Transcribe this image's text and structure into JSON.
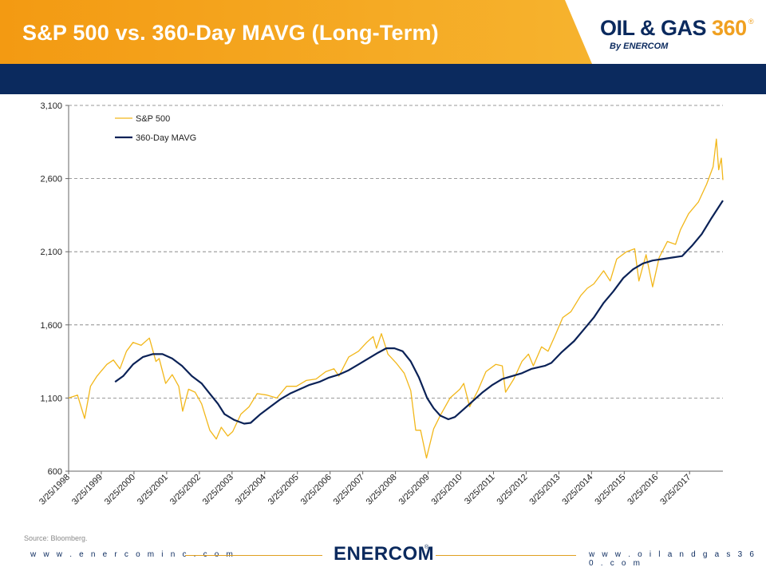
{
  "header": {
    "title": "S&P 500 vs. 360-Day MAVG (Long-Term)",
    "logo_text_left": "OIL & GAS ",
    "logo_text_num": "360",
    "logo_reg": "®",
    "logo_sub": "By ENERCOM"
  },
  "colors": {
    "banner_orange": "#f0a020",
    "banner_navy": "#0b2a5e",
    "sp500_line": "#f2b71a",
    "mavg_line": "#0b2257"
  },
  "chart_data": {
    "type": "line",
    "ylim": [
      600,
      3100
    ],
    "y_ticks": [
      "3,100",
      "2,600",
      "2,100",
      "1,600",
      "1,100",
      "600"
    ],
    "y_tick_values": [
      3100,
      2600,
      2100,
      1600,
      1100,
      600
    ],
    "x_ticks": [
      "3/25/1998",
      "3/25/1999",
      "3/25/2000",
      "3/25/2001",
      "3/25/2002",
      "3/25/2003",
      "3/25/2004",
      "3/25/2005",
      "3/25/2006",
      "3/25/2007",
      "3/25/2008",
      "3/25/2009",
      "3/25/2010",
      "3/25/2011",
      "3/25/2012",
      "3/25/2013",
      "3/25/2014",
      "3/25/2015",
      "3/25/2016",
      "3/25/2017"
    ],
    "x_tick_values": [
      1998.23,
      1999.23,
      2000.23,
      2001.23,
      2002.23,
      2003.23,
      2004.23,
      2005.23,
      2006.23,
      2007.23,
      2008.23,
      2009.23,
      2010.23,
      2011.23,
      2012.23,
      2013.23,
      2014.23,
      2015.23,
      2016.23,
      2017.23
    ],
    "xlim": [
      1998.23,
      2018.25
    ],
    "grid": "horizontal dashed",
    "legend_position": "top-left",
    "series": [
      {
        "name": "S&P 500",
        "points": [
          [
            1998.23,
            1100
          ],
          [
            1998.5,
            1120
          ],
          [
            1998.72,
            960
          ],
          [
            1998.9,
            1180
          ],
          [
            1999.1,
            1250
          ],
          [
            1999.4,
            1330
          ],
          [
            1999.6,
            1360
          ],
          [
            1999.8,
            1300
          ],
          [
            2000.0,
            1420
          ],
          [
            2000.2,
            1480
          ],
          [
            2000.45,
            1460
          ],
          [
            2000.7,
            1510
          ],
          [
            2000.9,
            1350
          ],
          [
            2001.0,
            1370
          ],
          [
            2001.2,
            1200
          ],
          [
            2001.4,
            1260
          ],
          [
            2001.6,
            1180
          ],
          [
            2001.72,
            1010
          ],
          [
            2001.9,
            1160
          ],
          [
            2002.1,
            1140
          ],
          [
            2002.3,
            1060
          ],
          [
            2002.55,
            880
          ],
          [
            2002.75,
            820
          ],
          [
            2002.9,
            900
          ],
          [
            2003.1,
            840
          ],
          [
            2003.25,
            870
          ],
          [
            2003.5,
            990
          ],
          [
            2003.75,
            1040
          ],
          [
            2004.0,
            1130
          ],
          [
            2004.3,
            1120
          ],
          [
            2004.6,
            1100
          ],
          [
            2004.9,
            1180
          ],
          [
            2005.2,
            1180
          ],
          [
            2005.5,
            1220
          ],
          [
            2005.8,
            1230
          ],
          [
            2006.1,
            1280
          ],
          [
            2006.35,
            1300
          ],
          [
            2006.5,
            1250
          ],
          [
            2006.8,
            1380
          ],
          [
            2007.1,
            1420
          ],
          [
            2007.35,
            1480
          ],
          [
            2007.55,
            1520
          ],
          [
            2007.65,
            1440
          ],
          [
            2007.8,
            1540
          ],
          [
            2008.0,
            1400
          ],
          [
            2008.25,
            1340
          ],
          [
            2008.5,
            1270
          ],
          [
            2008.7,
            1150
          ],
          [
            2008.85,
            880
          ],
          [
            2009.0,
            880
          ],
          [
            2009.18,
            690
          ],
          [
            2009.4,
            890
          ],
          [
            2009.6,
            980
          ],
          [
            2009.9,
            1100
          ],
          [
            2010.2,
            1160
          ],
          [
            2010.32,
            1200
          ],
          [
            2010.5,
            1040
          ],
          [
            2010.75,
            1150
          ],
          [
            2011.0,
            1280
          ],
          [
            2011.3,
            1330
          ],
          [
            2011.5,
            1320
          ],
          [
            2011.6,
            1140
          ],
          [
            2011.85,
            1230
          ],
          [
            2012.1,
            1350
          ],
          [
            2012.3,
            1400
          ],
          [
            2012.45,
            1320
          ],
          [
            2012.7,
            1450
          ],
          [
            2012.9,
            1420
          ],
          [
            2013.1,
            1520
          ],
          [
            2013.35,
            1650
          ],
          [
            2013.6,
            1690
          ],
          [
            2013.9,
            1800
          ],
          [
            2014.1,
            1850
          ],
          [
            2014.3,
            1880
          ],
          [
            2014.6,
            1970
          ],
          [
            2014.8,
            1900
          ],
          [
            2015.0,
            2050
          ],
          [
            2015.3,
            2100
          ],
          [
            2015.55,
            2120
          ],
          [
            2015.68,
            1900
          ],
          [
            2015.9,
            2080
          ],
          [
            2016.1,
            1860
          ],
          [
            2016.3,
            2060
          ],
          [
            2016.55,
            2170
          ],
          [
            2016.8,
            2150
          ],
          [
            2016.95,
            2250
          ],
          [
            2017.2,
            2360
          ],
          [
            2017.5,
            2440
          ],
          [
            2017.75,
            2560
          ],
          [
            2017.95,
            2680
          ],
          [
            2018.05,
            2870
          ],
          [
            2018.12,
            2660
          ],
          [
            2018.2,
            2740
          ],
          [
            2018.25,
            2590
          ]
        ]
      },
      {
        "name": "360-Day MAVG",
        "points": [
          [
            1999.65,
            1210
          ],
          [
            1999.9,
            1250
          ],
          [
            2000.2,
            1330
          ],
          [
            2000.5,
            1380
          ],
          [
            2000.8,
            1400
          ],
          [
            2001.1,
            1400
          ],
          [
            2001.4,
            1370
          ],
          [
            2001.7,
            1320
          ],
          [
            2002.0,
            1250
          ],
          [
            2002.3,
            1200
          ],
          [
            2002.55,
            1130
          ],
          [
            2002.8,
            1060
          ],
          [
            2003.0,
            990
          ],
          [
            2003.3,
            950
          ],
          [
            2003.6,
            925
          ],
          [
            2003.8,
            930
          ],
          [
            2004.1,
            990
          ],
          [
            2004.4,
            1040
          ],
          [
            2004.7,
            1090
          ],
          [
            2005.0,
            1130
          ],
          [
            2005.3,
            1160
          ],
          [
            2005.6,
            1190
          ],
          [
            2005.9,
            1210
          ],
          [
            2006.2,
            1240
          ],
          [
            2006.5,
            1260
          ],
          [
            2006.8,
            1290
          ],
          [
            2007.1,
            1330
          ],
          [
            2007.4,
            1370
          ],
          [
            2007.7,
            1410
          ],
          [
            2007.95,
            1440
          ],
          [
            2008.2,
            1440
          ],
          [
            2008.45,
            1420
          ],
          [
            2008.7,
            1350
          ],
          [
            2008.95,
            1240
          ],
          [
            2009.2,
            1100
          ],
          [
            2009.4,
            1030
          ],
          [
            2009.6,
            980
          ],
          [
            2009.85,
            955
          ],
          [
            2010.05,
            970
          ],
          [
            2010.3,
            1020
          ],
          [
            2010.6,
            1080
          ],
          [
            2010.9,
            1140
          ],
          [
            2011.2,
            1190
          ],
          [
            2011.5,
            1230
          ],
          [
            2011.8,
            1250
          ],
          [
            2012.1,
            1270
          ],
          [
            2012.4,
            1300
          ],
          [
            2012.8,
            1320
          ],
          [
            2013.0,
            1340
          ],
          [
            2013.3,
            1410
          ],
          [
            2013.7,
            1490
          ],
          [
            2014.0,
            1570
          ],
          [
            2014.3,
            1650
          ],
          [
            2014.6,
            1750
          ],
          [
            2014.9,
            1830
          ],
          [
            2015.2,
            1920
          ],
          [
            2015.5,
            1980
          ],
          [
            2015.8,
            2020
          ],
          [
            2016.1,
            2040
          ],
          [
            2016.4,
            2050
          ],
          [
            2016.7,
            2060
          ],
          [
            2017.0,
            2070
          ],
          [
            2017.3,
            2140
          ],
          [
            2017.6,
            2220
          ],
          [
            2017.9,
            2330
          ],
          [
            2018.25,
            2450
          ]
        ]
      }
    ]
  },
  "footer": {
    "source": "Source: Bloomberg.",
    "left_link": "w w w . e n e r c o m i n c . c o m",
    "right_link": "w w w . o i l a n d g a s 3 6 0 . c o m",
    "logo": "ENERCOM",
    "logo_reg": "®"
  }
}
